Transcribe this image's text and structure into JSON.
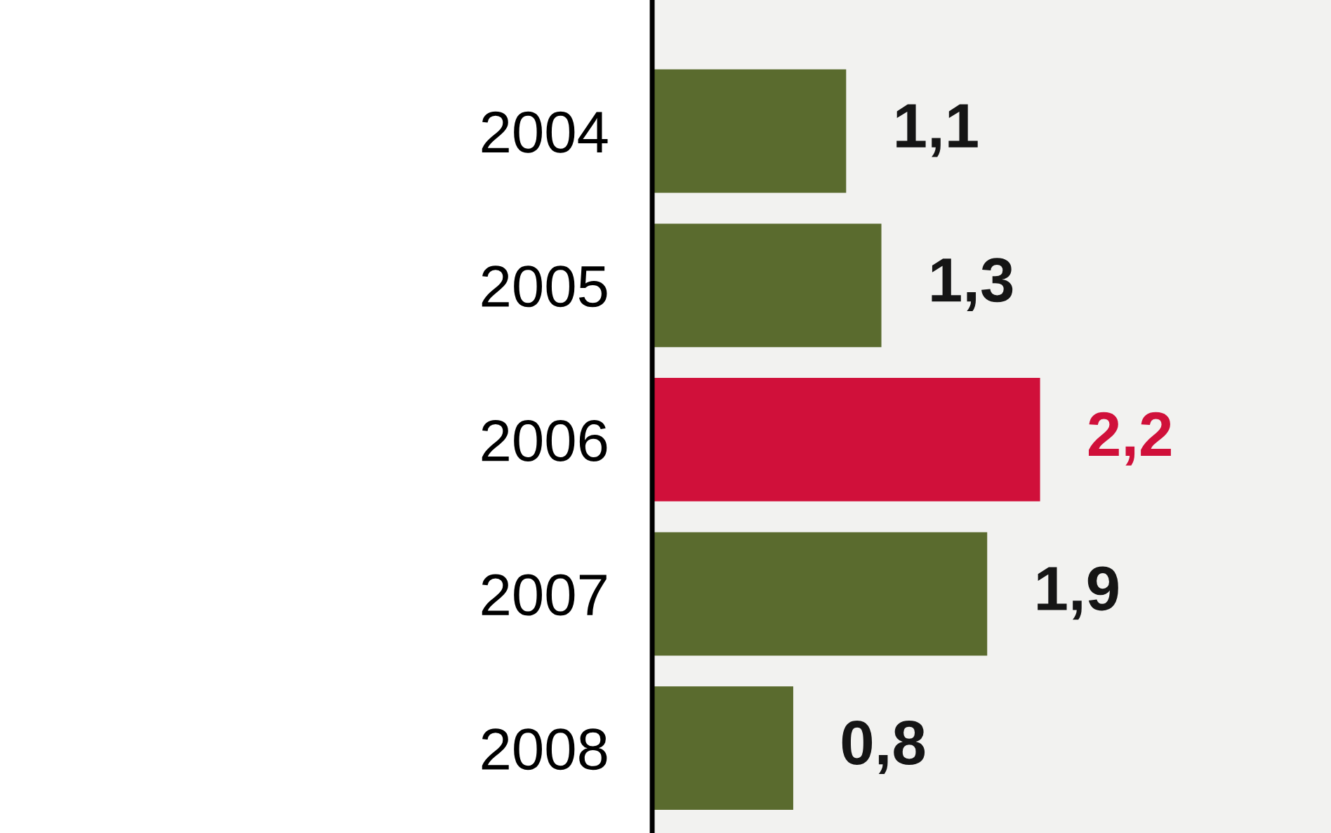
{
  "chart_data": {
    "type": "bar",
    "orientation": "horizontal",
    "categories": [
      "2004",
      "2005",
      "2006",
      "2007",
      "2008"
    ],
    "values": [
      1.1,
      1.3,
      2.2,
      1.9,
      0.8
    ],
    "colors": [
      "#5a6b2e",
      "#5a6b2e",
      "#d0103a",
      "#5a6b2e",
      "#5a6b2e"
    ],
    "value_labels": [
      "1,1",
      "1,3",
      "2,2",
      "1,9",
      "0,8"
    ],
    "tick_labels": "y",
    "grid": false,
    "legend": false
  }
}
